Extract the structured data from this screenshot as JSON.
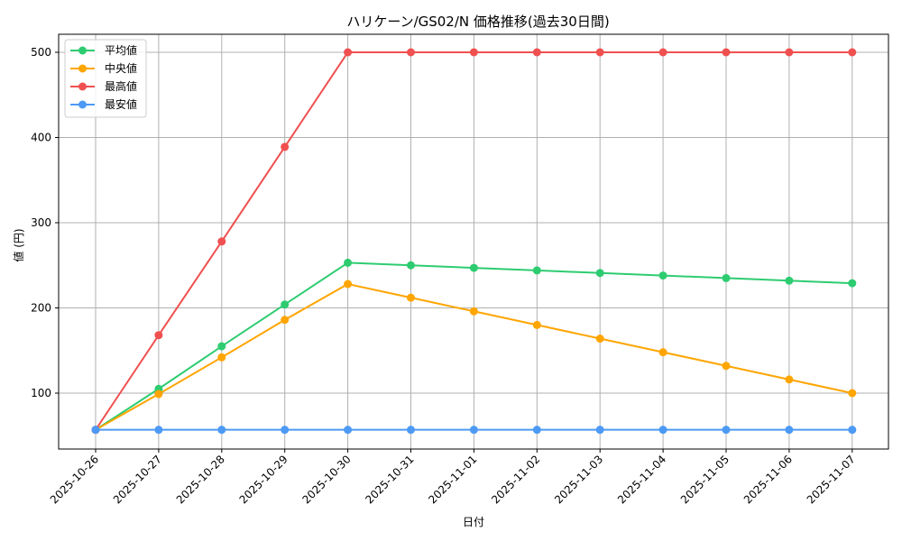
{
  "chart_data": {
    "type": "line",
    "title": "ハリケーン/GS02/N 価格推移(過去30日間)",
    "xlabel": "日付",
    "ylabel": "値 (円)",
    "ylim": [
      35,
      522
    ],
    "yticks": [
      100,
      200,
      300,
      400,
      500
    ],
    "grid": true,
    "legend_position": "upper left",
    "categories": [
      "2025-10-26",
      "2025-10-27",
      "2025-10-28",
      "2025-10-29",
      "2025-10-30",
      "2025-10-31",
      "2025-11-01",
      "2025-11-02",
      "2025-11-03",
      "2025-11-04",
      "2025-11-05",
      "2025-11-06",
      "2025-11-07"
    ],
    "series": [
      {
        "name": "平均値",
        "color": "#2ecc71",
        "values": [
          57,
          105,
          155,
          204,
          253,
          250,
          247,
          244,
          241,
          238,
          235,
          232,
          229
        ]
      },
      {
        "name": "中央値",
        "color": "#ffa500",
        "values": [
          57,
          99,
          142,
          186,
          228,
          212,
          196,
          180,
          164,
          148,
          132,
          116,
          100
        ]
      },
      {
        "name": "最高値",
        "color": "#f05050",
        "values": [
          57,
          168,
          278,
          389,
          500,
          500,
          500,
          500,
          500,
          500,
          500,
          500,
          500
        ]
      },
      {
        "name": "最安値",
        "color": "#4d9af5",
        "values": [
          57,
          57,
          57,
          57,
          57,
          57,
          57,
          57,
          57,
          57,
          57,
          57,
          57
        ]
      }
    ]
  }
}
